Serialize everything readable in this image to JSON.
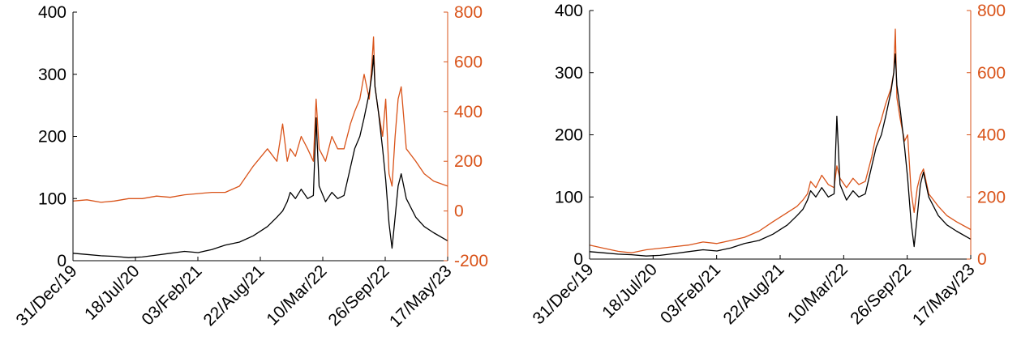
{
  "colors": {
    "left_series": "#000000",
    "right_series": "#D95319",
    "axes": "#000000"
  },
  "chart_data": [
    {
      "type": "line",
      "x_type": "date",
      "xlim": [
        "2019-12-31",
        "2023-05-17"
      ],
      "x_ticks": [
        "31/Dec/19",
        "18/Jul/20",
        "03/Feb/21",
        "22/Aug/21",
        "10/Mar/22",
        "26/Sep/22",
        "17/May/23"
      ],
      "ylim_left": [
        0,
        400
      ],
      "y_ticks_left": [
        "0",
        "100",
        "200",
        "300",
        "400"
      ],
      "ylim_right": [
        -200,
        800
      ],
      "y_ticks_right": [
        "-200",
        "0",
        "200",
        "400",
        "600",
        "800"
      ],
      "grid": false,
      "series": [
        {
          "axis": "left",
          "color": "#000000",
          "x": [
            "2019-12-31",
            "2020-02-15",
            "2020-04-01",
            "2020-05-15",
            "2020-07-01",
            "2020-08-15",
            "2020-10-01",
            "2020-11-15",
            "2021-01-01",
            "2021-02-15",
            "2021-04-01",
            "2021-05-15",
            "2021-07-01",
            "2021-08-15",
            "2021-10-01",
            "2021-11-01",
            "2021-11-20",
            "2021-12-05",
            "2021-12-15",
            "2022-01-01",
            "2022-01-20",
            "2022-02-10",
            "2022-03-01",
            "2022-03-10",
            "2022-03-20",
            "2022-04-10",
            "2022-05-01",
            "2022-05-20",
            "2022-06-10",
            "2022-07-01",
            "2022-07-15",
            "2022-08-01",
            "2022-08-15",
            "2022-09-01",
            "2022-09-10",
            "2022-09-15",
            "2022-09-20",
            "2022-10-01",
            "2022-10-15",
            "2022-10-25",
            "2022-11-05",
            "2022-11-15",
            "2022-11-25",
            "2022-12-05",
            "2022-12-15",
            "2023-01-01",
            "2023-02-01",
            "2023-03-01",
            "2023-04-01",
            "2023-05-17"
          ],
          "y": [
            12,
            10,
            8,
            7,
            5,
            6,
            9,
            12,
            15,
            13,
            18,
            25,
            30,
            40,
            55,
            70,
            80,
            95,
            110,
            100,
            115,
            100,
            105,
            230,
            120,
            95,
            110,
            100,
            105,
            150,
            180,
            200,
            230,
            270,
            300,
            330,
            280,
            240,
            180,
            130,
            60,
            20,
            70,
            120,
            140,
            100,
            70,
            55,
            45,
            32
          ]
        },
        {
          "axis": "right",
          "color": "#D95319",
          "x": [
            "2019-12-31",
            "2020-02-15",
            "2020-04-01",
            "2020-05-15",
            "2020-07-01",
            "2020-08-15",
            "2020-10-01",
            "2020-11-15",
            "2021-01-01",
            "2021-02-15",
            "2021-04-01",
            "2021-05-15",
            "2021-07-01",
            "2021-08-15",
            "2021-10-01",
            "2021-11-01",
            "2021-11-20",
            "2021-12-05",
            "2021-12-15",
            "2022-01-01",
            "2022-01-20",
            "2022-02-10",
            "2022-03-01",
            "2022-03-10",
            "2022-03-20",
            "2022-04-10",
            "2022-05-01",
            "2022-05-20",
            "2022-06-10",
            "2022-07-01",
            "2022-07-15",
            "2022-08-01",
            "2022-08-15",
            "2022-09-01",
            "2022-09-10",
            "2022-09-15",
            "2022-09-20",
            "2022-10-01",
            "2022-10-15",
            "2022-10-25",
            "2022-11-05",
            "2022-11-15",
            "2022-11-25",
            "2022-12-05",
            "2022-12-15",
            "2023-01-01",
            "2023-02-01",
            "2023-03-01",
            "2023-04-01",
            "2023-05-17"
          ],
          "y": [
            40,
            45,
            35,
            40,
            50,
            50,
            60,
            55,
            65,
            70,
            75,
            75,
            100,
            180,
            250,
            200,
            350,
            200,
            250,
            220,
            300,
            250,
            200,
            450,
            250,
            200,
            300,
            250,
            250,
            350,
            400,
            450,
            550,
            450,
            600,
            700,
            500,
            400,
            300,
            450,
            150,
            100,
            300,
            450,
            500,
            250,
            200,
            150,
            120,
            100
          ]
        }
      ]
    },
    {
      "type": "line",
      "x_type": "date",
      "xlim": [
        "2019-12-31",
        "2023-05-17"
      ],
      "x_ticks": [
        "31/Dec/19",
        "18/Jul/20",
        "03/Feb/21",
        "22/Aug/21",
        "10/Mar/22",
        "26/Sep/22",
        "17/May/23"
      ],
      "ylim_left": [
        0,
        400
      ],
      "y_ticks_left": [
        "0",
        "100",
        "200",
        "300",
        "400"
      ],
      "ylim_right": [
        0,
        800
      ],
      "y_ticks_right": [
        "0",
        "200",
        "400",
        "600",
        "800"
      ],
      "grid": false,
      "series": [
        {
          "axis": "left",
          "color": "#000000",
          "x": [
            "2019-12-31",
            "2020-02-15",
            "2020-04-01",
            "2020-05-15",
            "2020-07-01",
            "2020-08-15",
            "2020-10-01",
            "2020-11-15",
            "2021-01-01",
            "2021-02-15",
            "2021-04-01",
            "2021-05-15",
            "2021-07-01",
            "2021-08-15",
            "2021-10-01",
            "2021-11-01",
            "2021-11-20",
            "2021-12-05",
            "2021-12-15",
            "2022-01-01",
            "2022-01-20",
            "2022-02-10",
            "2022-03-01",
            "2022-03-10",
            "2022-03-20",
            "2022-04-10",
            "2022-05-01",
            "2022-05-20",
            "2022-06-10",
            "2022-07-01",
            "2022-07-15",
            "2022-08-01",
            "2022-08-15",
            "2022-09-01",
            "2022-09-10",
            "2022-09-15",
            "2022-09-20",
            "2022-10-01",
            "2022-10-15",
            "2022-10-25",
            "2022-11-05",
            "2022-11-15",
            "2022-11-25",
            "2022-12-05",
            "2022-12-15",
            "2023-01-01",
            "2023-02-01",
            "2023-03-01",
            "2023-04-01",
            "2023-05-17"
          ],
          "y": [
            12,
            10,
            8,
            7,
            5,
            6,
            9,
            12,
            15,
            13,
            18,
            25,
            30,
            40,
            55,
            70,
            80,
            95,
            110,
            100,
            115,
            100,
            105,
            230,
            120,
            95,
            110,
            100,
            105,
            150,
            180,
            200,
            230,
            270,
            300,
            330,
            280,
            240,
            180,
            130,
            60,
            20,
            70,
            120,
            140,
            100,
            70,
            55,
            45,
            32
          ]
        },
        {
          "axis": "right",
          "color": "#D95319",
          "x": [
            "2019-12-31",
            "2020-02-15",
            "2020-04-01",
            "2020-05-15",
            "2020-07-01",
            "2020-08-15",
            "2020-10-01",
            "2020-11-15",
            "2021-01-01",
            "2021-02-15",
            "2021-04-01",
            "2021-05-15",
            "2021-07-01",
            "2021-08-15",
            "2021-10-01",
            "2021-11-01",
            "2021-11-20",
            "2021-12-05",
            "2021-12-15",
            "2022-01-01",
            "2022-01-20",
            "2022-02-10",
            "2022-03-01",
            "2022-03-10",
            "2022-03-20",
            "2022-04-10",
            "2022-05-01",
            "2022-05-20",
            "2022-06-10",
            "2022-07-01",
            "2022-07-15",
            "2022-08-01",
            "2022-08-15",
            "2022-09-01",
            "2022-09-10",
            "2022-09-15",
            "2022-09-20",
            "2022-10-01",
            "2022-10-15",
            "2022-10-25",
            "2022-11-05",
            "2022-11-15",
            "2022-11-25",
            "2022-12-05",
            "2022-12-15",
            "2023-01-01",
            "2023-02-01",
            "2023-03-01",
            "2023-04-01",
            "2023-05-17"
          ],
          "y": [
            45,
            35,
            25,
            20,
            30,
            35,
            40,
            45,
            55,
            50,
            60,
            70,
            90,
            120,
            150,
            170,
            190,
            210,
            250,
            230,
            270,
            240,
            230,
            300,
            260,
            230,
            260,
            240,
            250,
            330,
            400,
            450,
            500,
            550,
            600,
            740,
            520,
            450,
            380,
            400,
            220,
            150,
            230,
            270,
            290,
            210,
            170,
            140,
            120,
            95
          ]
        }
      ]
    }
  ]
}
